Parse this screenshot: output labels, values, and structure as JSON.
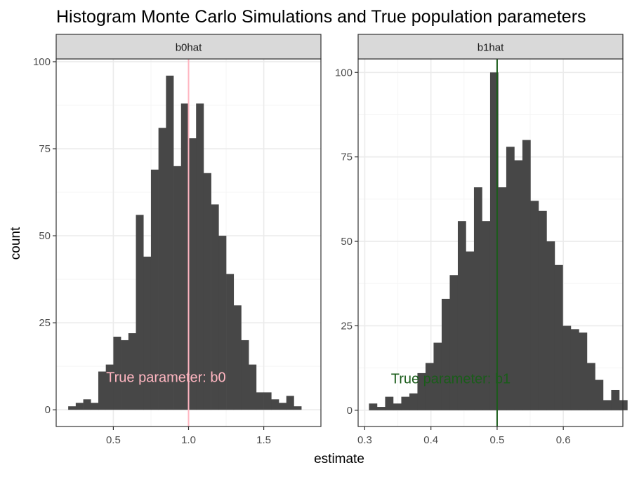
{
  "chart_data": {
    "type": "histogram",
    "title": "Histogram Monte Carlo Simulations and True population parameters",
    "xlabel": "estimate",
    "ylabel": "count",
    "facet_scales": "free",
    "grid": true,
    "colors": {
      "bar": "#474747",
      "panel_border": "#333333",
      "strip_fill": "#d9d9d9",
      "grid_major": "#ebebeb",
      "grid_minor": "#f5f5f5"
    },
    "panels": [
      {
        "label": "b0hat",
        "xlim": [
          0.12,
          1.88
        ],
        "ylim": [
          -4.8,
          100.8
        ],
        "xticks": [
          0.5,
          1.0,
          1.5
        ],
        "xtick_labels": [
          "0.5",
          "1.0",
          "1.5"
        ],
        "yticks": [
          0,
          25,
          50,
          75,
          100
        ],
        "ytick_labels": [
          "0",
          "25",
          "50",
          "75",
          "100"
        ],
        "bin_start": 0.2,
        "bin_width": 0.05,
        "counts": [
          1,
          2,
          3,
          2,
          11,
          13,
          21,
          20,
          22,
          56,
          44,
          69,
          81,
          96,
          70,
          88,
          78,
          88,
          68,
          59,
          50,
          39,
          30,
          20,
          13,
          5,
          5,
          3,
          2,
          4,
          1
        ],
        "vline": {
          "x": 1.0,
          "color": "#ffb6c1"
        },
        "annotation": {
          "text": "True parameter:  b0",
          "x": 0.85,
          "y": 8,
          "color": "#ffb6c1"
        }
      },
      {
        "label": "b1hat",
        "xlim": [
          0.29,
          0.69
        ],
        "ylim": [
          -4.8,
          104
        ],
        "xticks": [
          0.3,
          0.4,
          0.5,
          0.6
        ],
        "xtick_labels": [
          "0.3",
          "0.4",
          "0.5",
          "0.6"
        ],
        "yticks": [
          0,
          25,
          50,
          75,
          100
        ],
        "ytick_labels": [
          "0",
          "25",
          "50",
          "75",
          "100"
        ],
        "bin_start": 0.3064,
        "bin_width": 0.0122,
        "counts": [
          2,
          1,
          4,
          2,
          4,
          5,
          11,
          14,
          20,
          33,
          40,
          56,
          47,
          66,
          56,
          100,
          66,
          78,
          74,
          80,
          62,
          59,
          50,
          43,
          25,
          24,
          23,
          14,
          9,
          3,
          6,
          3
        ],
        "vline": {
          "x": 0.5,
          "color": "#1a5c1a"
        },
        "annotation": {
          "text": "True parameter:  b1",
          "x": 0.43,
          "y": 8,
          "color": "#1a5c1a"
        }
      }
    ]
  }
}
